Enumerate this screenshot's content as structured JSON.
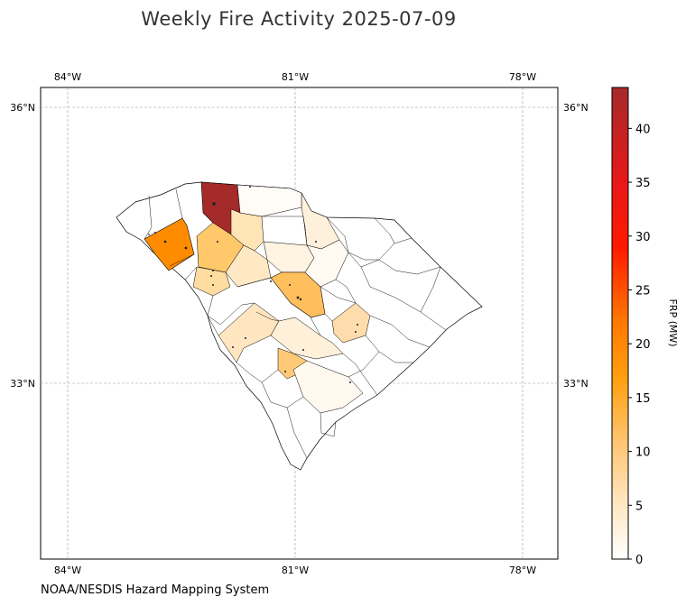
{
  "title": "Weekly Fire Activity 2025-07-09",
  "source": "NOAA/NESDIS Hazard Mapping System",
  "map": {
    "region": "South Carolina counties",
    "lon_ticks": [
      "84°W",
      "81°W",
      "78°W"
    ],
    "lat_ticks": [
      "36°N",
      "33°N"
    ],
    "lon_range": [
      -84.35,
      -77.55
    ],
    "lat_range": [
      31.1,
      36.25
    ],
    "grid": true,
    "colormap": [
      "#ffffff",
      "#ffe3b3",
      "#ffb347",
      "#ff8c00",
      "#ff0000",
      "#a52a2a"
    ]
  },
  "colorbar": {
    "label": "FRP (MW)",
    "min": 0,
    "max": 43.8,
    "ticks": [
      0,
      5,
      10,
      15,
      20,
      25,
      30,
      35,
      40
    ]
  }
}
